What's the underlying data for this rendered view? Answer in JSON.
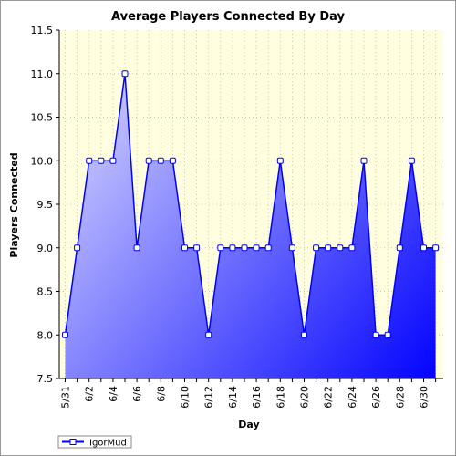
{
  "chart_data": {
    "type": "area",
    "title": "Average Players Connected By Day",
    "xlabel": "Day",
    "ylabel": "Players Connected",
    "ylim": [
      7.5,
      11.5
    ],
    "yticks": [
      "7.5",
      "8.0",
      "8.5",
      "9.0",
      "9.5",
      "10.0",
      "10.5",
      "11.0",
      "11.5"
    ],
    "x_tick_labels": [
      "5/31",
      "6/2",
      "6/4",
      "6/6",
      "6/8",
      "6/10",
      "6/12",
      "6/14",
      "6/16",
      "6/18",
      "6/20",
      "6/22",
      "6/24",
      "6/26",
      "6/28",
      "6/30"
    ],
    "categories": [
      "5/31",
      "6/1",
      "6/2",
      "6/3",
      "6/4",
      "6/5",
      "6/6",
      "6/7",
      "6/8",
      "6/9",
      "6/10",
      "6/11",
      "6/12",
      "6/13",
      "6/14",
      "6/15",
      "6/16",
      "6/17",
      "6/18",
      "6/19",
      "6/20",
      "6/21",
      "6/22",
      "6/23",
      "6/24",
      "6/25",
      "6/26",
      "6/27",
      "6/28",
      "6/29",
      "6/30",
      "7/1"
    ],
    "series": [
      {
        "name": "IgorMud",
        "values": [
          8,
          9,
          10,
          10,
          10,
          11,
          9,
          10,
          10,
          10,
          9,
          9,
          8,
          9,
          9,
          9,
          9,
          9,
          10,
          9,
          8,
          9,
          9,
          9,
          9,
          10,
          8,
          8,
          9,
          10,
          9,
          9
        ]
      }
    ],
    "grid": true,
    "legend": "bottom-left",
    "colors": {
      "plot_bg": "#ffffe0",
      "line": "#0000ff",
      "fill_light": "#dcdcff",
      "fill_dark": "#0000ff",
      "marker_fill": "#ffffff",
      "grid": "#c8c8b4"
    }
  }
}
